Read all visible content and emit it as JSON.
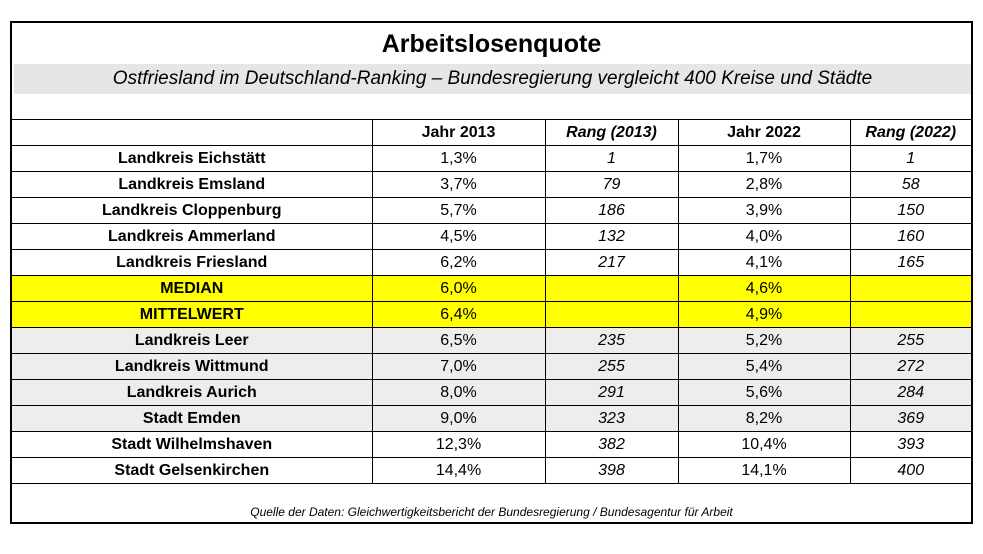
{
  "title": "Arbeitslosenquote",
  "subtitle": "Ostfriesland im Deutschland-Ranking – Bundesregierung vergleicht 400 Kreise und Städte",
  "table": {
    "headers": [
      "",
      "Jahr 2013",
      "Rang (2013)",
      "Jahr 2022",
      "Rang (2022)"
    ],
    "rows": [
      {
        "name": "Landkreis Eichstätt",
        "q2013": "1,3%",
        "r2013": "1",
        "q2022": "1,7%",
        "r2022": "1",
        "style": "white"
      },
      {
        "name": "Landkreis Emsland",
        "q2013": "3,7%",
        "r2013": "79",
        "q2022": "2,8%",
        "r2022": "58",
        "style": "white"
      },
      {
        "name": "Landkreis Cloppenburg",
        "q2013": "5,7%",
        "r2013": "186",
        "q2022": "3,9%",
        "r2022": "150",
        "style": "white"
      },
      {
        "name": "Landkreis Ammerland",
        "q2013": "4,5%",
        "r2013": "132",
        "q2022": "4,0%",
        "r2022": "160",
        "style": "white"
      },
      {
        "name": "Landkreis Friesland",
        "q2013": "6,2%",
        "r2013": "217",
        "q2022": "4,1%",
        "r2022": "165",
        "style": "white"
      },
      {
        "name": "MEDIAN",
        "q2013": "6,0%",
        "r2013": "",
        "q2022": "4,6%",
        "r2022": "",
        "style": "highlight"
      },
      {
        "name": "MITTELWERT",
        "q2013": "6,4%",
        "r2013": "",
        "q2022": "4,9%",
        "r2022": "",
        "style": "highlight"
      },
      {
        "name": "Landkreis Leer",
        "q2013": "6,5%",
        "r2013": "235",
        "q2022": "5,2%",
        "r2022": "255",
        "style": "grey"
      },
      {
        "name": "Landkreis Wittmund",
        "q2013": "7,0%",
        "r2013": "255",
        "q2022": "5,4%",
        "r2022": "272",
        "style": "grey"
      },
      {
        "name": "Landkreis Aurich",
        "q2013": "8,0%",
        "r2013": "291",
        "q2022": "5,6%",
        "r2022": "284",
        "style": "grey"
      },
      {
        "name": "Stadt Emden",
        "q2013": "9,0%",
        "r2013": "323",
        "q2022": "8,2%",
        "r2022": "369",
        "style": "grey"
      },
      {
        "name": "Stadt Wilhelmshaven",
        "q2013": "12,3%",
        "r2013": "382",
        "q2022": "10,4%",
        "r2022": "393",
        "style": "white"
      },
      {
        "name": "Stadt Gelsenkirchen",
        "q2013": "14,4%",
        "r2013": "398",
        "q2022": "14,1%",
        "r2022": "400",
        "style": "white"
      }
    ]
  },
  "source": "Quelle der Daten: Gleichwertigkeitsbericht der Bundesregierung / Bundesagentur für Arbeit",
  "colors": {
    "highlight": "#ffff00",
    "grey_row": "#ededed",
    "subtitle_band": "#e6e6e6"
  }
}
